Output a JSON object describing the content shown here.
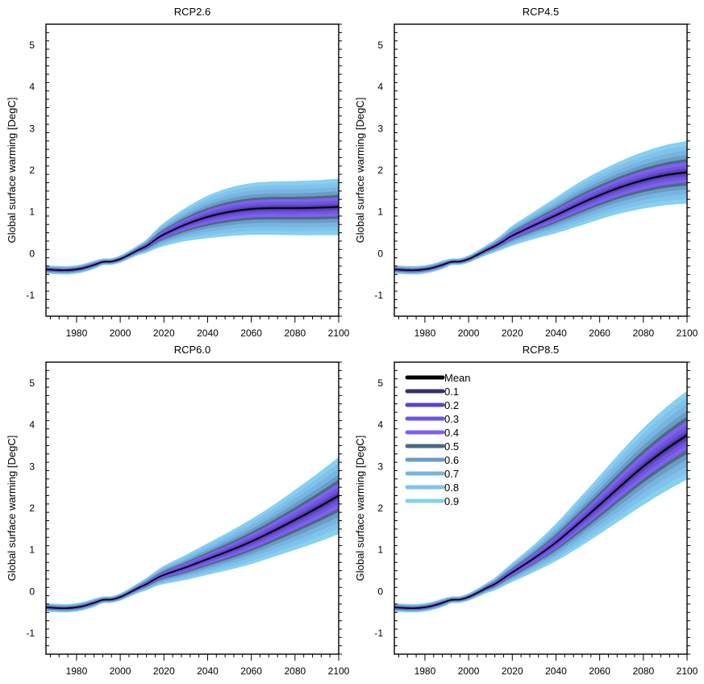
{
  "chart_data": [
    {
      "type": "area",
      "title": "RCP2.6",
      "xlabel": "",
      "ylabel": "Global surface warming [DegC]",
      "xlim": [
        1966,
        2100
      ],
      "ylim": [
        -1.5,
        5.5
      ],
      "x_ticks": [
        1980,
        2000,
        2020,
        2040,
        2060,
        2080,
        2100
      ],
      "y_ticks": [
        -1,
        0,
        1,
        2,
        3,
        4,
        5
      ],
      "x": [
        1966,
        1975,
        1982,
        1988,
        1992,
        1996,
        2000,
        2004,
        2008,
        2012,
        2016,
        2020,
        2030,
        2040,
        2050,
        2060,
        2070,
        2080,
        2090,
        2100
      ],
      "mean": [
        -0.38,
        -0.4,
        -0.36,
        -0.27,
        -0.2,
        -0.19,
        -0.13,
        -0.03,
        0.08,
        0.18,
        0.33,
        0.46,
        0.7,
        0.88,
        1.0,
        1.07,
        1.09,
        1.09,
        1.1,
        1.12
      ],
      "spread": [
        0.1,
        0.1,
        0.1,
        0.1,
        0.08,
        0.08,
        0.09,
        0.1,
        0.12,
        0.16,
        0.22,
        0.28,
        0.4,
        0.51,
        0.58,
        0.62,
        0.64,
        0.65,
        0.66,
        0.68
      ],
      "band_widths": [
        0.05,
        0.12,
        0.22,
        0.33,
        0.42,
        0.55,
        0.7,
        0.85,
        1.0
      ]
    },
    {
      "type": "area",
      "title": "RCP4.5",
      "xlabel": "",
      "ylabel": "Global surface warming [DegC]",
      "xlim": [
        1966,
        2100
      ],
      "ylim": [
        -1.5,
        5.5
      ],
      "x_ticks": [
        1980,
        2000,
        2020,
        2040,
        2060,
        2080,
        2100
      ],
      "y_ticks": [
        -1,
        0,
        1,
        2,
        3,
        4,
        5
      ],
      "x": [
        1966,
        1975,
        1982,
        1988,
        1992,
        1996,
        2000,
        2004,
        2008,
        2012,
        2016,
        2020,
        2030,
        2040,
        2050,
        2060,
        2070,
        2080,
        2090,
        2100
      ],
      "mean": [
        -0.38,
        -0.4,
        -0.36,
        -0.27,
        -0.2,
        -0.19,
        -0.13,
        -0.03,
        0.08,
        0.18,
        0.3,
        0.43,
        0.68,
        0.92,
        1.17,
        1.4,
        1.6,
        1.76,
        1.88,
        1.95
      ],
      "spread": [
        0.1,
        0.1,
        0.1,
        0.1,
        0.08,
        0.08,
        0.09,
        0.1,
        0.12,
        0.15,
        0.19,
        0.24,
        0.33,
        0.43,
        0.52,
        0.58,
        0.63,
        0.68,
        0.72,
        0.75
      ],
      "band_widths": [
        0.05,
        0.12,
        0.22,
        0.33,
        0.42,
        0.55,
        0.7,
        0.85,
        1.0
      ]
    },
    {
      "type": "area",
      "title": "RCP6.0",
      "xlabel": "",
      "ylabel": "Global surface warming [DegC]",
      "xlim": [
        1966,
        2100
      ],
      "ylim": [
        -1.5,
        5.5
      ],
      "x_ticks": [
        1980,
        2000,
        2020,
        2040,
        2060,
        2080,
        2100
      ],
      "y_ticks": [
        -1,
        0,
        1,
        2,
        3,
        4,
        5
      ],
      "x": [
        1966,
        1975,
        1982,
        1988,
        1992,
        1996,
        2000,
        2004,
        2008,
        2012,
        2016,
        2020,
        2030,
        2040,
        2050,
        2060,
        2070,
        2080,
        2090,
        2100
      ],
      "mean": [
        -0.38,
        -0.4,
        -0.36,
        -0.27,
        -0.2,
        -0.19,
        -0.13,
        -0.03,
        0.08,
        0.18,
        0.3,
        0.4,
        0.58,
        0.78,
        0.98,
        1.2,
        1.45,
        1.72,
        2.0,
        2.3
      ],
      "spread": [
        0.1,
        0.1,
        0.1,
        0.1,
        0.08,
        0.08,
        0.09,
        0.1,
        0.12,
        0.15,
        0.18,
        0.22,
        0.3,
        0.38,
        0.46,
        0.54,
        0.62,
        0.72,
        0.82,
        0.92
      ],
      "band_widths": [
        0.05,
        0.12,
        0.22,
        0.33,
        0.42,
        0.55,
        0.7,
        0.85,
        1.0
      ]
    },
    {
      "type": "area",
      "title": "RCP8.5",
      "xlabel": "",
      "ylabel": "Global surface warming [DegC]",
      "xlim": [
        1966,
        2100
      ],
      "ylim": [
        -1.5,
        5.5
      ],
      "x_ticks": [
        1980,
        2000,
        2020,
        2040,
        2060,
        2080,
        2100
      ],
      "y_ticks": [
        -1,
        0,
        1,
        2,
        3,
        4,
        5
      ],
      "x": [
        1966,
        1975,
        1982,
        1988,
        1992,
        1996,
        2000,
        2004,
        2008,
        2012,
        2016,
        2020,
        2030,
        2040,
        2050,
        2060,
        2070,
        2080,
        2090,
        2100
      ],
      "mean": [
        -0.38,
        -0.4,
        -0.36,
        -0.27,
        -0.2,
        -0.19,
        -0.13,
        -0.03,
        0.08,
        0.18,
        0.32,
        0.46,
        0.8,
        1.18,
        1.62,
        2.08,
        2.55,
        3.0,
        3.4,
        3.75
      ],
      "spread": [
        0.1,
        0.1,
        0.1,
        0.1,
        0.08,
        0.08,
        0.09,
        0.1,
        0.12,
        0.15,
        0.19,
        0.23,
        0.33,
        0.45,
        0.58,
        0.7,
        0.82,
        0.92,
        1.0,
        1.06
      ],
      "band_widths": [
        0.05,
        0.12,
        0.22,
        0.33,
        0.42,
        0.55,
        0.7,
        0.85,
        1.0
      ],
      "legend": {
        "placement": "top-left",
        "entries": [
          {
            "label": "Mean",
            "color": "#000000"
          },
          {
            "label": "0.1",
            "color": "#3a2f6b"
          },
          {
            "label": "0.2",
            "color": "#5c44c4"
          },
          {
            "label": "0.3",
            "color": "#6e55e0"
          },
          {
            "label": "0.4",
            "color": "#8060f0"
          },
          {
            "label": "0.5",
            "color": "#4a6a82"
          },
          {
            "label": "0.6",
            "color": "#6a9cc6"
          },
          {
            "label": "0.7",
            "color": "#78b4e0"
          },
          {
            "label": "0.8",
            "color": "#80c2ec"
          },
          {
            "label": "0.9",
            "color": "#86d0f0"
          }
        ]
      }
    }
  ],
  "band_colors": [
    "#86d0f0",
    "#80c2ec",
    "#78b4e0",
    "#6a9cc6",
    "#4a6a82",
    "#8060f0",
    "#6e55e0",
    "#5c44c4",
    "#3a2f6b"
  ],
  "mean_color": "#000000"
}
